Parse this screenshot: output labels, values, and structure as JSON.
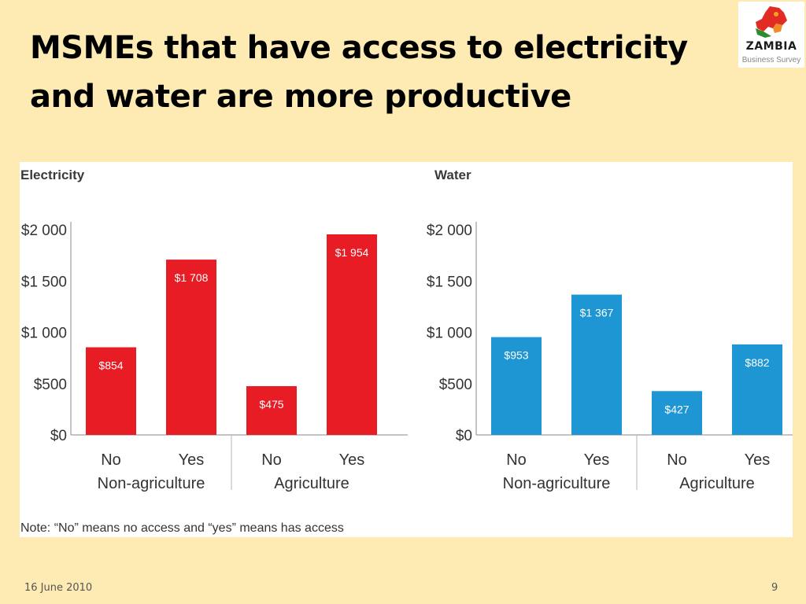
{
  "slide": {
    "title": "MSMEs that have access to electricity and water are more productive",
    "footer_date": "16 June 2010",
    "page_number": "9",
    "logo": {
      "name": "ZAMBIA",
      "subtitle": "Business Survey"
    },
    "note": "Note: “No” means no access and “yes” means has access"
  },
  "chart_data": [
    {
      "type": "bar",
      "title": "Electricity",
      "color": "#E81C25",
      "categories": [
        "No",
        "Yes",
        "No",
        "Yes"
      ],
      "groups": [
        "Non-agriculture",
        "Agriculture"
      ],
      "values": [
        854,
        1708,
        475,
        1954
      ],
      "value_labels": [
        "$854",
        "$1 708",
        "$475",
        "$1 954"
      ],
      "yticks": [
        "$0",
        "$500",
        "$1 000",
        "$1 500",
        "$2 000"
      ],
      "ylim": [
        0,
        2000
      ]
    },
    {
      "type": "bar",
      "title": "Water",
      "color": "#1E96D3",
      "categories": [
        "No",
        "Yes",
        "No",
        "Yes"
      ],
      "groups": [
        "Non-agriculture",
        "Agriculture"
      ],
      "values": [
        953,
        1367,
        427,
        882
      ],
      "value_labels": [
        "$953",
        "$1 367",
        "$427",
        "$882"
      ],
      "yticks": [
        "$0",
        "$500",
        "$1 000",
        "$1 500",
        "$2 000"
      ],
      "ylim": [
        0,
        2000
      ]
    }
  ]
}
